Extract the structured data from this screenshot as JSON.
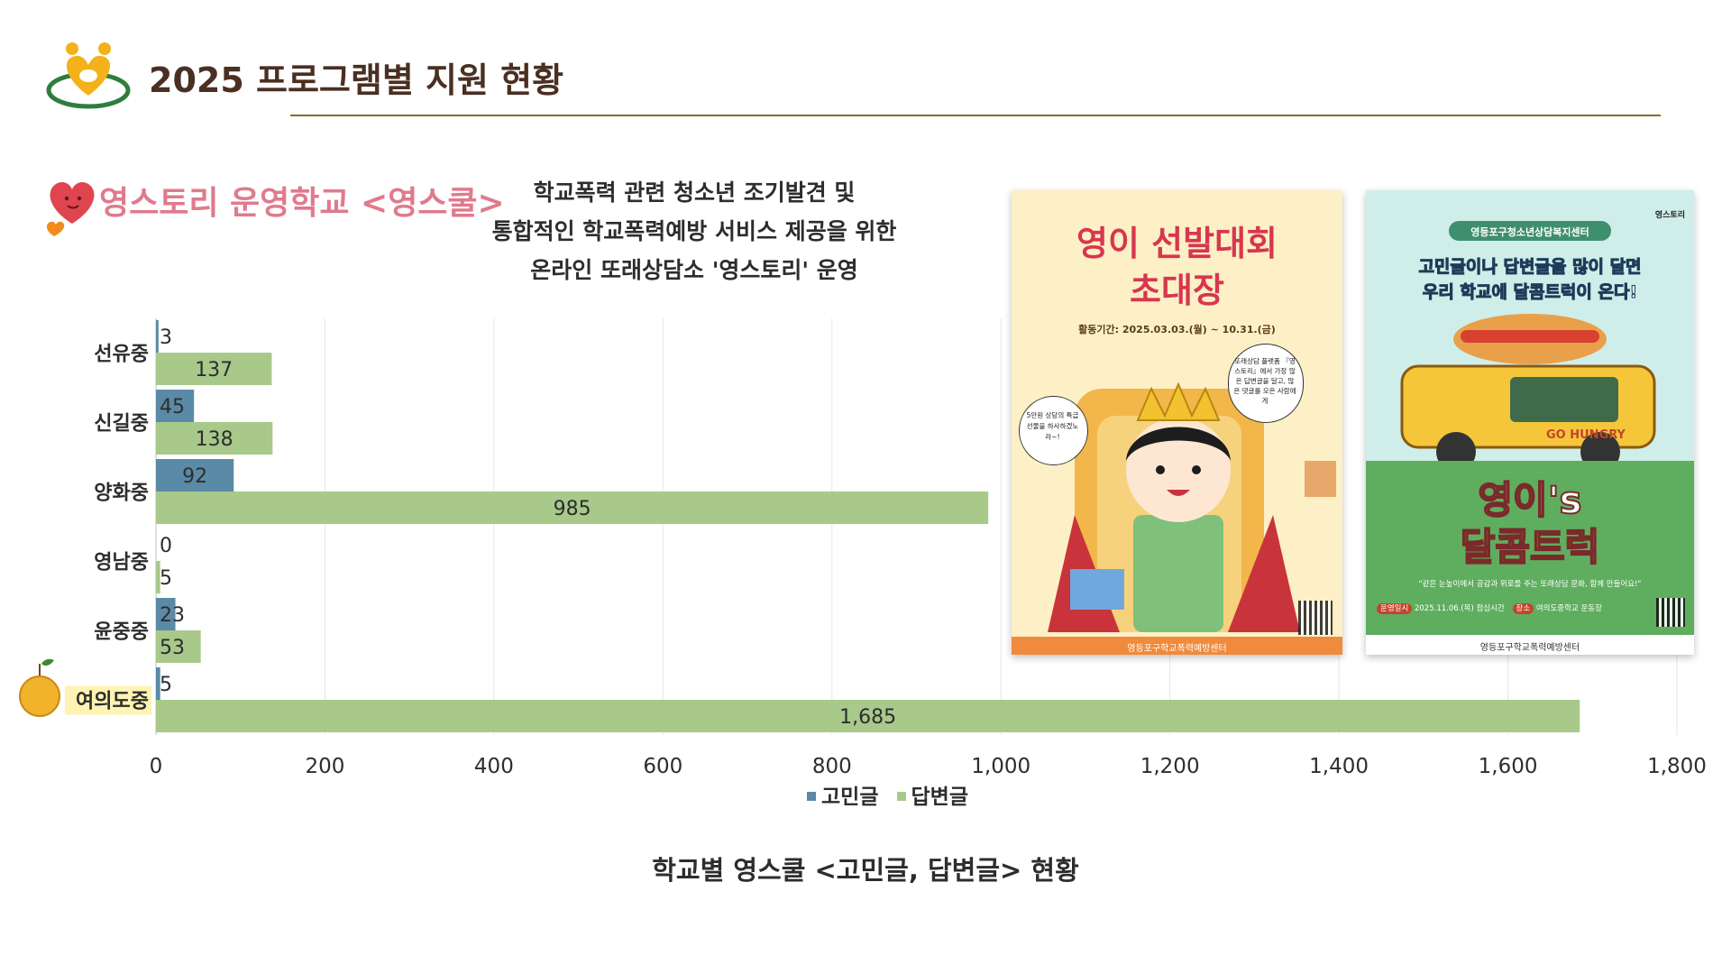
{
  "header": {
    "title": "2025 프로그램별 지원 현황"
  },
  "section": {
    "title": "영스토리  운영학교 <영스쿨>",
    "description_lines": [
      "학교폭력 관련 청소년 조기발견 및",
      "통합적인 학교폭력예방 서비스 제공을 위한",
      "온라인 또래상담소 '영스토리' 운영"
    ]
  },
  "colors": {
    "series_worry": "#5b8aa6",
    "series_reply": "#a8c98a",
    "accent": "#e07a8c",
    "rule": "#8a6a2f"
  },
  "chart_data": {
    "type": "bar",
    "orientation": "horizontal",
    "categories": [
      "선유중",
      "신길중",
      "양화중",
      "영남중",
      "윤중중",
      "여의도중"
    ],
    "series": [
      {
        "name": "고민글",
        "values": [
          3,
          45,
          92,
          0,
          23,
          5
        ]
      },
      {
        "name": "답변글",
        "values": [
          137,
          138,
          985,
          5,
          53,
          1685
        ]
      }
    ],
    "value_labels": {
      "고민글": [
        "3",
        "45",
        "92",
        "0",
        "23",
        "5"
      ],
      "답변글": [
        "137",
        "138",
        "985",
        "5",
        "53",
        "1,685"
      ]
    },
    "xlim": [
      0,
      1800
    ],
    "xticks": [
      0,
      200,
      400,
      600,
      800,
      1000,
      1200,
      1400,
      1600,
      1800
    ],
    "xtick_labels": [
      "0",
      "200",
      "400",
      "600",
      "800",
      "1,000",
      "1,200",
      "1,400",
      "1,600",
      "1,800"
    ],
    "grid": true,
    "legend_position": "bottom",
    "highlighted_category": "여의도중",
    "caption": "학교별 영스쿨 <고민글, 답변글> 현황"
  },
  "posters": [
    {
      "title_line1": "영이 선발대회",
      "title_line2": "초대장",
      "period": "활동기간: 2025.03.03.(월) ~ 10.31.(금)",
      "speech_right": "또래상담 플랫폼 『영스토리』에서 가장 많은 답변글을 달고, 많은 댓글를 모은 사람에게",
      "speech_left": "5만원 상당의 특급선물을 하사하겠노라~!",
      "footer": "영등포구학교폭력예방센터"
    },
    {
      "banner": "영등포구청소년상담복지센터",
      "headline_line1": "고민글이나 답변글을 많이 달면",
      "headline_line2": "우리 학교에 달콤트럭이 온다!",
      "truck_text": "GO HUNGRY",
      "title_line1": "영이's",
      "title_line2": "달콤트럭",
      "slogan": "\"같은 눈높이에서 공감과 위로를 주는 또래상담 문화, 함께 만들어요!\"",
      "date_label": "운영일시",
      "date_value": "2025.11.06.(목) 점심시간",
      "place_label": "장소",
      "place_value": "여의도중학교 운동장",
      "footer": "영등포구학교폭력예방센터",
      "brand": "영스토리"
    }
  ]
}
